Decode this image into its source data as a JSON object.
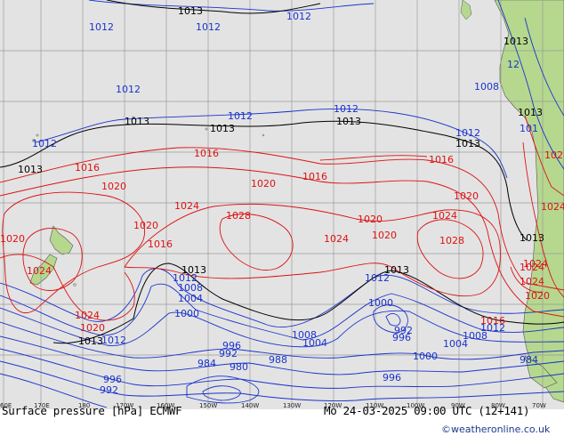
{
  "map": {
    "colors": {
      "ocean": "#e3e3e3",
      "land": "#b5d88e",
      "grid": "#9a9a9a",
      "isobar_low": "#1a33cc",
      "isobar_ref": "#000000",
      "isobar_high": "#dd1111"
    },
    "longitude_labels": [
      "60E",
      "170E",
      "180",
      "170W",
      "160W",
      "150W",
      "140W",
      "130W",
      "120W",
      "110W",
      "100W",
      "90W",
      "80W",
      "70W"
    ],
    "isobar_labels": {
      "l1013_top": "1013",
      "l1012_top_a": "1012",
      "l1012_top_b": "1012",
      "l1012_top_c": "1012",
      "l1013_sa_a": "1013",
      "l12_sa": "12",
      "l1008_sa": "1008",
      "l1012_mid_a": "1012",
      "l1013_mid_a": "1013",
      "l1013_mid_b": "1013",
      "l1012_mid_b": "1012",
      "l1012_mid_c": "1012",
      "l1013_mid_c": "1013",
      "l1012_left": "1012",
      "l1013_left": "1013",
      "l1012_e": "1012",
      "l1013_e": "1013",
      "l1013_sa_b": "1013",
      "l101_sa": "101",
      "l1016_a": "1016",
      "l1016_b": "1016",
      "l1016_c": "1016",
      "l1016_d": "1016",
      "l102_sa": "102",
      "l1020_a": "1020",
      "l1020_b": "1020",
      "l1020_c": "1020",
      "l1020_d": "1020",
      "l1020_e": "1020",
      "l1020_f": "1020",
      "l1020_g": "1020",
      "l1024_a": "1024",
      "l1024_b": "1024",
      "l1024_c": "1024",
      "l1024_d": "1024",
      "l1024_e": "1024",
      "l1024_f": "1024",
      "l1028_a": "1028",
      "l1028_b": "1028",
      "l1016_nz": "1016",
      "l1013_s_a": "1013",
      "l1013_s_b": "1013",
      "l1012_s_a": "1012",
      "l1012_s_b": "1012",
      "l1008_s_a": "1008",
      "l1004_s_a": "1004",
      "l1000_s_a": "1000",
      "l1024_nz": "1024",
      "l1024_sw": "1024",
      "l1020_sw": "1020",
      "l1013_sw": "1013",
      "l1012_sw": "1012",
      "l1016_se": "1016",
      "l1012_se": "1012",
      "l1024_sa": "1024",
      "l1020_sa": "1020",
      "l1008_s_b": "1008",
      "l1004_s_b": "1004",
      "l1000_s_b": "1000",
      "l992_c": "992",
      "l996_c": "996",
      "l1000_c": "1000",
      "l996_a": "996",
      "l992_a": "992",
      "l988_a": "988",
      "l984_a": "984",
      "l980_a": "980",
      "l996_b": "996",
      "l992_b": "992",
      "l1004_e": "1004",
      "l1008_e": "1008",
      "l1000_e": "1000",
      "l984_e": "984",
      "l996_e": "996"
    }
  },
  "footer": {
    "title": "Surface pressure [hPa] ECMWF",
    "valid_time": "Mo 24-03-2025 09:00 UTC (12+141)",
    "credit": "©weatheronline.co.uk"
  }
}
